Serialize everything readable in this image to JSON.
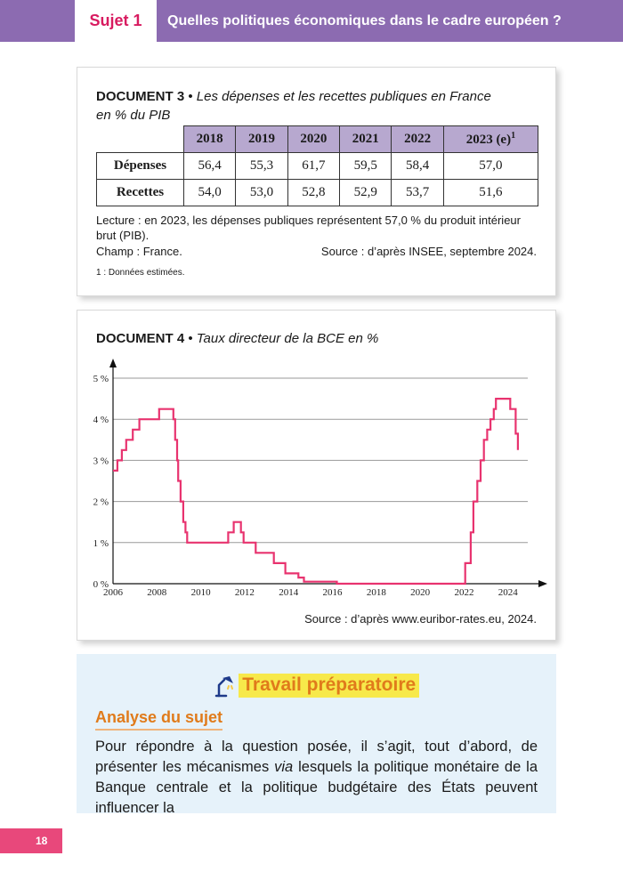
{
  "header": {
    "sujet_label": "Sujet 1",
    "title": "Quelles politiques économiques dans le cadre européen ?"
  },
  "doc3": {
    "label": "DOCUMENT 3",
    "title_line1": "Les dépenses et les recettes publiques en France",
    "title_line2": "en % du PIB",
    "columns": [
      "2018",
      "2019",
      "2020",
      "2021",
      "2022",
      "2023 (e)"
    ],
    "last_col_sup": "1",
    "rows": [
      {
        "label": "Dépenses",
        "values": [
          "56,4",
          "55,3",
          "61,7",
          "59,5",
          "58,4",
          "57,0"
        ]
      },
      {
        "label": "Recettes",
        "values": [
          "54,0",
          "53,0",
          "52,8",
          "52,9",
          "53,7",
          "51,6"
        ]
      }
    ],
    "lecture_line1": "Lecture : en 2023, les dépenses publiques représentent 57,0 % du produit intérieur",
    "lecture_line2": "brut (PIB).",
    "champ": "Champ : France.",
    "source": "Source : d’après INSEE, septembre 2024.",
    "footnote": "1 : Données estimées."
  },
  "doc4": {
    "label": "DOCUMENT 4",
    "title": "Taux directeur de la BCE en %",
    "source": "Source : d’après www.euribor-rates.eu, 2024."
  },
  "chart_data": {
    "type": "line",
    "step": true,
    "title": "Taux directeur de la BCE en %",
    "line_color": "#e8336f",
    "xlim": [
      2006,
      2024.9
    ],
    "ylim": [
      0,
      5
    ],
    "xticks": [
      "2006",
      "2008",
      "2010",
      "2012",
      "2014",
      "2016",
      "2018",
      "2020",
      "2022",
      "2024"
    ],
    "yticks": [
      "0 %",
      "1 %",
      "2 %",
      "3 %",
      "4 %",
      "5 %"
    ],
    "grid": "horizontal",
    "series": [
      {
        "points": [
          [
            2006.0,
            2.75
          ],
          [
            2006.2,
            2.75
          ],
          [
            2006.2,
            3.0
          ],
          [
            2006.4,
            3.0
          ],
          [
            2006.4,
            3.25
          ],
          [
            2006.6,
            3.25
          ],
          [
            2006.6,
            3.5
          ],
          [
            2006.9,
            3.5
          ],
          [
            2006.9,
            3.75
          ],
          [
            2007.2,
            3.75
          ],
          [
            2007.2,
            4.0
          ],
          [
            2008.0,
            4.0
          ],
          [
            2008.0,
            4.0
          ],
          [
            2008.1,
            4.0
          ],
          [
            2008.1,
            4.25
          ],
          [
            2008.75,
            4.25
          ],
          [
            2008.75,
            4.0
          ],
          [
            2008.83,
            4.0
          ],
          [
            2008.83,
            3.5
          ],
          [
            2008.92,
            3.5
          ],
          [
            2008.92,
            3.0
          ],
          [
            2008.97,
            3.0
          ],
          [
            2008.97,
            2.5
          ],
          [
            2009.08,
            2.5
          ],
          [
            2009.08,
            2.0
          ],
          [
            2009.2,
            2.0
          ],
          [
            2009.2,
            1.5
          ],
          [
            2009.3,
            1.5
          ],
          [
            2009.3,
            1.25
          ],
          [
            2009.38,
            1.25
          ],
          [
            2009.38,
            1.0
          ],
          [
            2011.25,
            1.0
          ],
          [
            2011.25,
            1.25
          ],
          [
            2011.5,
            1.25
          ],
          [
            2011.5,
            1.5
          ],
          [
            2011.83,
            1.5
          ],
          [
            2011.83,
            1.25
          ],
          [
            2011.95,
            1.25
          ],
          [
            2011.95,
            1.0
          ],
          [
            2012.5,
            1.0
          ],
          [
            2012.5,
            0.75
          ],
          [
            2013.33,
            0.75
          ],
          [
            2013.33,
            0.5
          ],
          [
            2013.85,
            0.5
          ],
          [
            2013.85,
            0.25
          ],
          [
            2014.45,
            0.25
          ],
          [
            2014.45,
            0.15
          ],
          [
            2014.7,
            0.15
          ],
          [
            2014.7,
            0.05
          ],
          [
            2016.2,
            0.05
          ],
          [
            2016.2,
            0.0
          ],
          [
            2022.05,
            0.0
          ],
          [
            2022.05,
            0.5
          ],
          [
            2022.3,
            0.5
          ],
          [
            2022.3,
            1.25
          ],
          [
            2022.42,
            1.25
          ],
          [
            2022.42,
            2.0
          ],
          [
            2022.6,
            2.0
          ],
          [
            2022.6,
            2.5
          ],
          [
            2022.75,
            2.5
          ],
          [
            2022.75,
            3.0
          ],
          [
            2022.9,
            3.0
          ],
          [
            2022.9,
            3.5
          ],
          [
            2023.05,
            3.5
          ],
          [
            2023.05,
            3.75
          ],
          [
            2023.2,
            3.75
          ],
          [
            2023.2,
            4.0
          ],
          [
            2023.35,
            4.0
          ],
          [
            2023.35,
            4.25
          ],
          [
            2023.45,
            4.25
          ],
          [
            2023.45,
            4.5
          ],
          [
            2024.1,
            4.5
          ],
          [
            2024.1,
            4.25
          ],
          [
            2024.35,
            4.25
          ],
          [
            2024.35,
            3.65
          ],
          [
            2024.45,
            3.65
          ],
          [
            2024.45,
            3.25
          ]
        ]
      }
    ]
  },
  "prep": {
    "title": "Travail préparatoire",
    "lamp_icon": "desk-lamp-icon",
    "subtitle": "Analyse du sujet",
    "text_before": "Pour répondre à la question posée, il s’agit, tout d’abord, de présenter les mécanismes ",
    "text_italic": "via",
    "text_after": " lesquels la politique monétaire de la Banque centrale et la politique budgétaire des États peuvent influencer la"
  },
  "page_number": "18"
}
